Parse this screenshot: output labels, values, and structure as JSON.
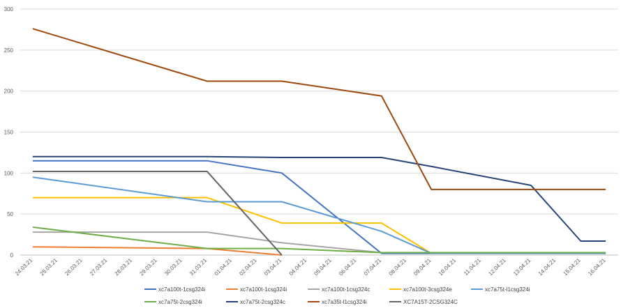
{
  "chart_data": {
    "type": "line",
    "title": "",
    "xlabel": "",
    "ylabel": "",
    "ylim": [
      0,
      300
    ],
    "yticks": [
      0,
      50,
      100,
      150,
      200,
      250,
      300
    ],
    "grid": true,
    "legend_position": "bottom",
    "categories": [
      "24.03.21",
      "25.03.21",
      "26.03.21",
      "27.03.21",
      "28.03.21",
      "29.03.21",
      "30.03.21",
      "31.03.21",
      "01.04.21",
      "02.04.21",
      "03.04.21",
      "04.04.21",
      "05.04.21",
      "06.04.21",
      "07.04.21",
      "08.04.21",
      "09.04.21",
      "10.04.21",
      "11.04.21",
      "12.04.21",
      "13.04.21",
      "14.04.21",
      "15.04.21",
      "16.04.21"
    ],
    "series": [
      {
        "name": "xc7a100t-1csg324i",
        "color": "#4472c4",
        "values": [
          115,
          null,
          null,
          null,
          null,
          null,
          null,
          115,
          null,
          null,
          100,
          null,
          null,
          null,
          2,
          null,
          2,
          null,
          null,
          null,
          null,
          null,
          null,
          2
        ]
      },
      {
        "name": "xc7a100t-1csg324i",
        "color": "#ed7d31",
        "values": [
          10,
          null,
          null,
          null,
          null,
          null,
          null,
          8,
          null,
          null,
          0,
          null,
          null,
          null,
          null,
          null,
          null,
          null,
          null,
          null,
          null,
          null,
          null,
          null
        ]
      },
      {
        "name": "xc7a100t-1csg324c",
        "color": "#a5a5a5",
        "values": [
          28,
          null,
          null,
          null,
          null,
          null,
          null,
          28,
          null,
          null,
          15,
          null,
          null,
          null,
          3,
          null,
          3,
          null,
          null,
          null,
          null,
          null,
          null,
          3
        ]
      },
      {
        "name": "xc7a100t-3csg324e",
        "color": "#ffc000",
        "values": [
          70,
          null,
          null,
          null,
          null,
          null,
          null,
          70,
          null,
          null,
          39,
          null,
          null,
          null,
          39,
          null,
          2,
          null,
          null,
          null,
          null,
          null,
          null,
          2
        ]
      },
      {
        "name": "xc7a75t-l1csg324i",
        "color": "#5b9bd5",
        "values": [
          95,
          null,
          null,
          null,
          null,
          null,
          null,
          65,
          null,
          null,
          65,
          null,
          null,
          null,
          29,
          null,
          2,
          null,
          null,
          null,
          null,
          null,
          null,
          2
        ]
      },
      {
        "name": "xc7a75t-2csg324i",
        "color": "#70ad47",
        "values": [
          34,
          null,
          null,
          null,
          null,
          null,
          null,
          8,
          null,
          null,
          8,
          null,
          null,
          null,
          3,
          null,
          3,
          null,
          null,
          null,
          null,
          null,
          null,
          3
        ]
      },
      {
        "name": "xc7a75t-2csg324c",
        "color": "#264478",
        "values": [
          120,
          null,
          null,
          null,
          null,
          null,
          null,
          120,
          null,
          null,
          119,
          null,
          null,
          null,
          119,
          null,
          108,
          null,
          null,
          null,
          85,
          null,
          17,
          17
        ]
      },
      {
        "name": "xc7a35t-l1csg324i",
        "color": "#9e480e",
        "values": [
          276,
          null,
          null,
          null,
          null,
          null,
          null,
          212,
          null,
          null,
          212,
          null,
          null,
          null,
          194,
          null,
          80,
          null,
          null,
          null,
          null,
          null,
          null,
          80
        ]
      },
      {
        "name": "XC7A15T-2CSG324C",
        "color": "#636363",
        "values": [
          102,
          null,
          null,
          null,
          null,
          null,
          null,
          102,
          null,
          null,
          0,
          null,
          null,
          null,
          null,
          null,
          null,
          null,
          null,
          null,
          null,
          null,
          null,
          null
        ]
      }
    ]
  }
}
